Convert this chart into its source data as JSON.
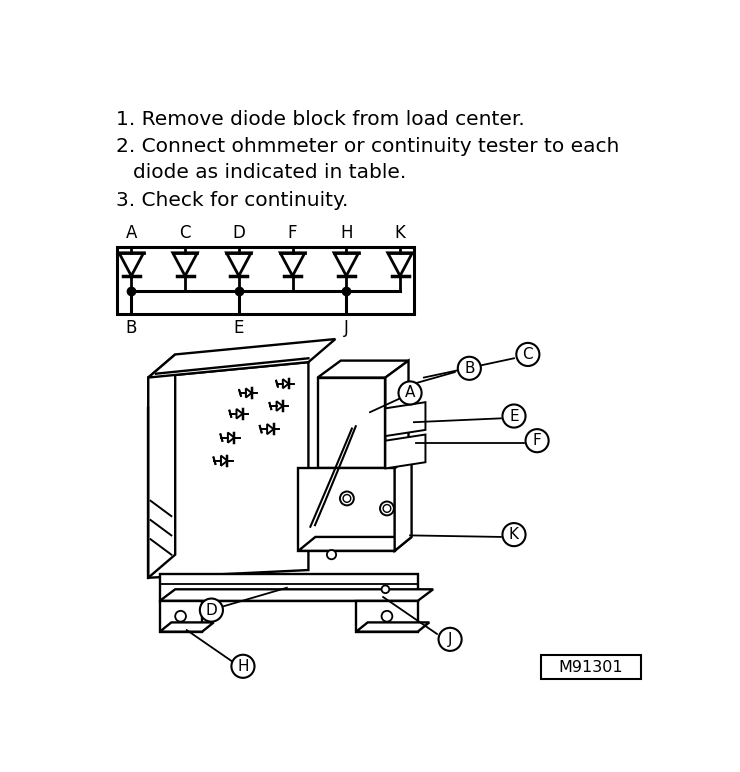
{
  "instructions": [
    "1. Remove diode block from load center.",
    "2. Connect ohmmeter or continuity tester to each\n    diode as indicated in table.",
    "3. Check for continuity."
  ],
  "schematic_labels_top": [
    "A",
    "C",
    "D",
    "F",
    "H",
    "K"
  ],
  "schematic_labels_bottom": [
    "B",
    "E",
    "J"
  ],
  "model_number": "M91301",
  "bg_color": "#ffffff",
  "text_color": "#000000",
  "instruction_fontsize": 14.5,
  "label_fontsize": 12,
  "callout_fontsize": 11
}
